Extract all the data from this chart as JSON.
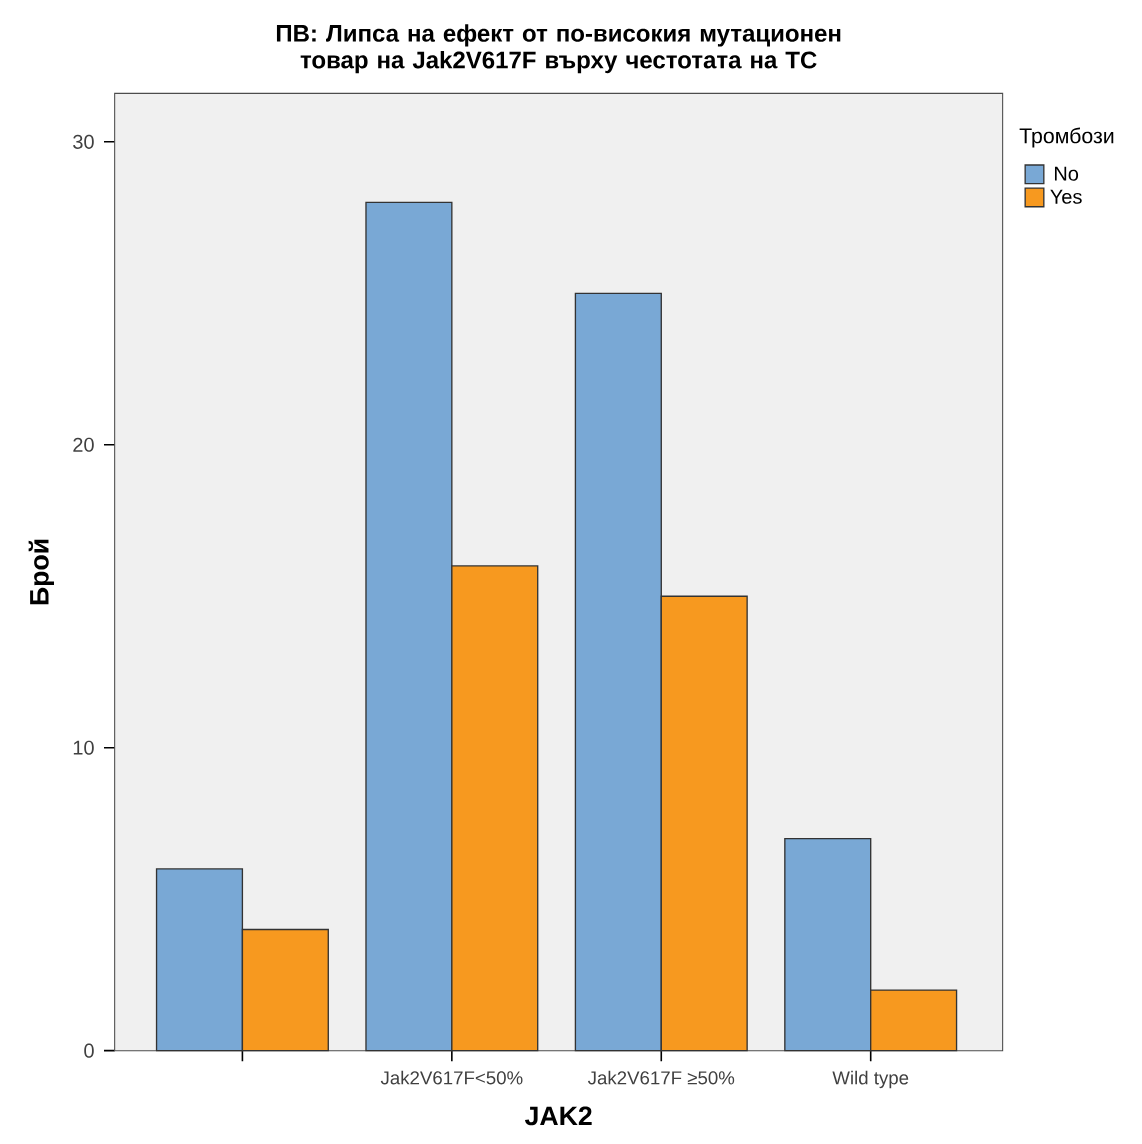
{
  "chart_data": {
    "type": "bar",
    "title": "ПВ: Липса на ефект от по-високия мутационен товар на Jak2V617F върху честотата на ТС",
    "xlabel": "JAK2",
    "ylabel": "Брой",
    "legend_title": "Тромбози",
    "categories": [
      null,
      "Jak2V617F<50%",
      "Jak2V617F ≥50%",
      "Wild type"
    ],
    "series": [
      {
        "name": "No",
        "color": "#79a8d5",
        "values": [
          6,
          28,
          25,
          7
        ]
      },
      {
        "name": "Yes",
        "color": "#f7991f",
        "values": [
          4,
          16,
          15,
          2
        ]
      }
    ],
    "ylim": [
      0,
      31.6
    ],
    "yticks": [
      0,
      10,
      20,
      30
    ],
    "grid": false,
    "legend": "top right"
  }
}
